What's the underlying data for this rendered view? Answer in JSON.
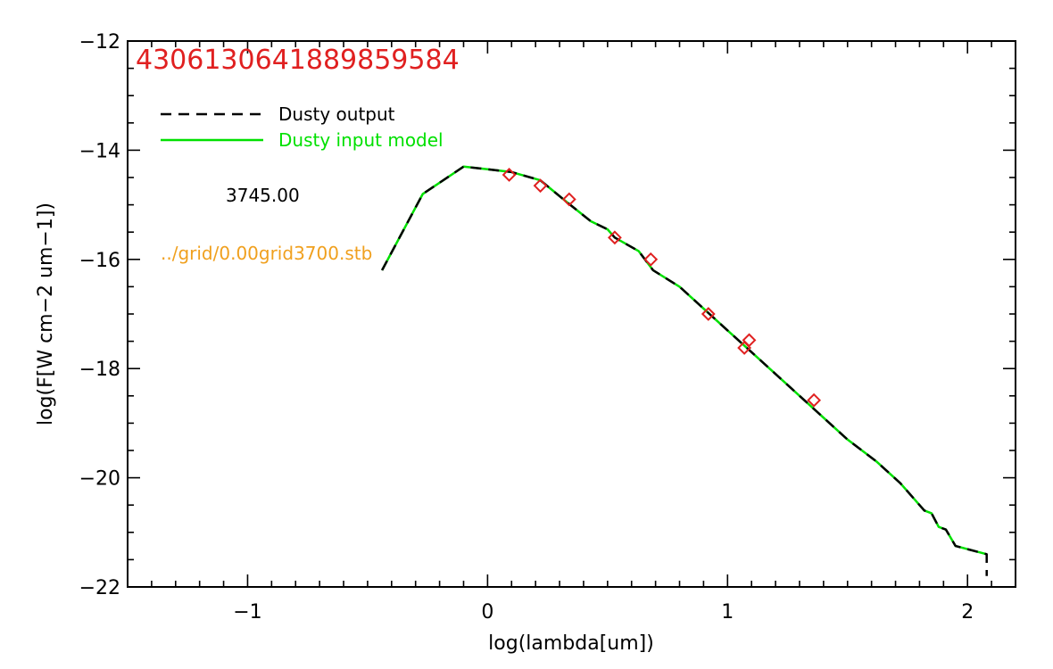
{
  "chart_data": {
    "type": "line",
    "title": "4306130641889859584",
    "xlabel": "log(lambda[um])",
    "ylabel": "log(F[W cm−2 um−1])",
    "xlim": [
      -1.5,
      2.2
    ],
    "ylim": [
      -22,
      -12
    ],
    "x_major_ticks": [
      -1,
      0,
      1,
      2
    ],
    "x_tick_labels": [
      "−1",
      "0",
      "1",
      "2"
    ],
    "y_major_ticks": [
      -22,
      -20,
      -18,
      -16,
      -14,
      -12
    ],
    "y_tick_labels": [
      "−22",
      "−20",
      "−18",
      "−16",
      "−14",
      "−12"
    ],
    "grid": false,
    "legend_position": "top-left",
    "annotations": [
      {
        "text": "3745.00",
        "color": "#000000"
      },
      {
        "text": "../grid/0.00grid3700.stb",
        "color": "#f0a01e"
      }
    ],
    "series": [
      {
        "name": "Dusty output",
        "style": "dashed",
        "color": "#000000",
        "x": [
          -0.44,
          -0.27,
          -0.1,
          0.0,
          0.1,
          0.22,
          0.33,
          0.43,
          0.5,
          0.53,
          0.63,
          0.69,
          0.8,
          0.9,
          1.0,
          1.1,
          1.2,
          1.3,
          1.4,
          1.5,
          1.62,
          1.72,
          1.82,
          1.85,
          1.88,
          1.91,
          1.95,
          2.08,
          2.08
        ],
        "y": [
          -16.2,
          -14.8,
          -14.3,
          -14.35,
          -14.4,
          -14.55,
          -14.95,
          -15.3,
          -15.45,
          -15.6,
          -15.85,
          -16.2,
          -16.5,
          -16.9,
          -17.3,
          -17.7,
          -18.1,
          -18.5,
          -18.9,
          -19.3,
          -19.7,
          -20.1,
          -20.6,
          -20.65,
          -20.9,
          -20.95,
          -21.25,
          -21.4,
          -21.8
        ],
        "dash_on_bg": "#00e000"
      },
      {
        "name": "Dusty input model",
        "style": "solid",
        "color": "#00e000",
        "x": [
          -0.44,
          -0.27,
          -0.1,
          0.0,
          0.1,
          0.22,
          0.33,
          0.43,
          0.5,
          0.53,
          0.63,
          0.69,
          0.8,
          0.9,
          1.0,
          1.1,
          1.2,
          1.3,
          1.4,
          1.5,
          1.62,
          1.72,
          1.82,
          1.85,
          1.88,
          1.91,
          1.95,
          2.08
        ],
        "y": [
          -16.2,
          -14.8,
          -14.3,
          -14.35,
          -14.4,
          -14.55,
          -14.95,
          -15.3,
          -15.45,
          -15.6,
          -15.85,
          -16.2,
          -16.5,
          -16.9,
          -17.3,
          -17.7,
          -18.1,
          -18.5,
          -18.9,
          -19.3,
          -19.7,
          -20.1,
          -20.6,
          -20.65,
          -20.9,
          -20.95,
          -21.25,
          -21.4
        ]
      }
    ],
    "markers": {
      "shape": "diamond",
      "color": "#e02020",
      "x": [
        0.09,
        0.22,
        0.34,
        0.53,
        0.68,
        0.92,
        1.07,
        1.09,
        1.36
      ],
      "y": [
        -14.45,
        -14.65,
        -14.9,
        -15.6,
        -16.0,
        -17.0,
        -17.62,
        -17.48,
        -18.58
      ]
    }
  }
}
